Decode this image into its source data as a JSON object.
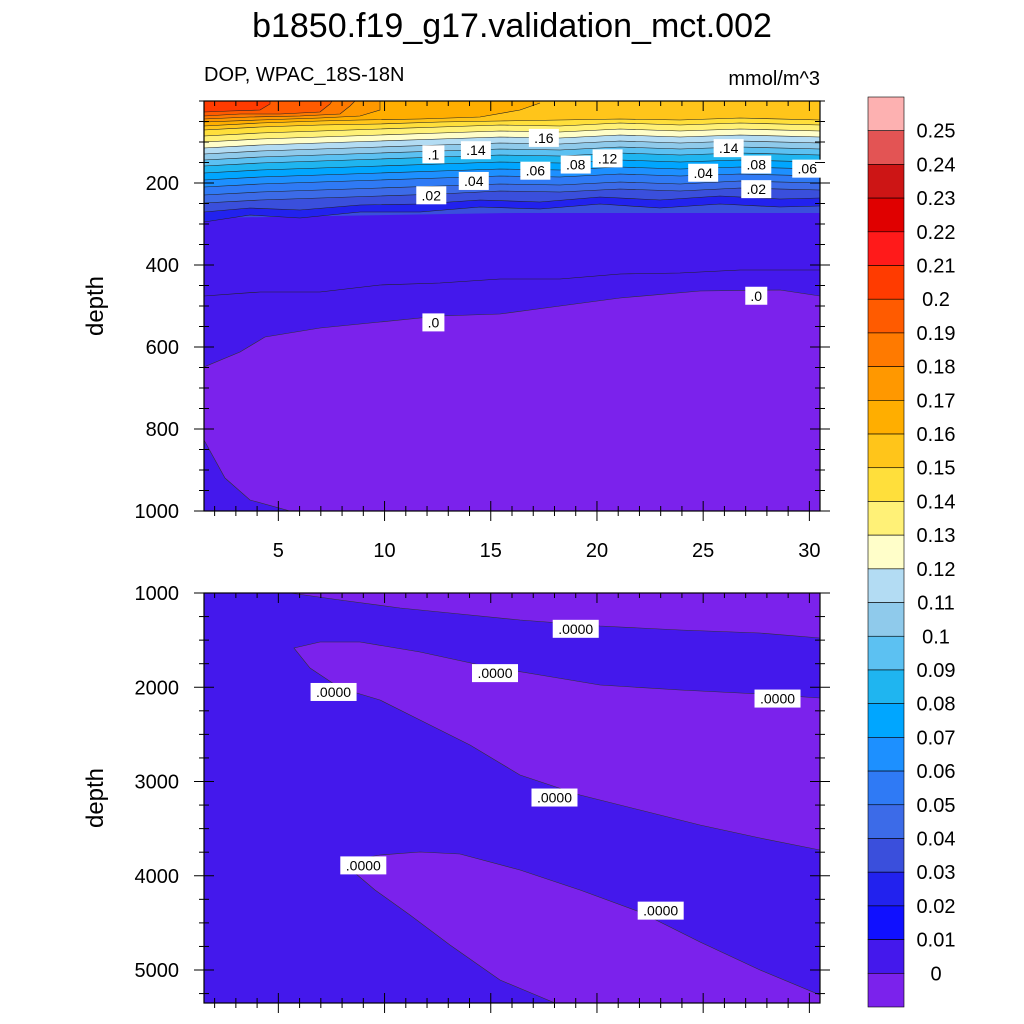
{
  "chart_data": [
    {
      "type": "contour",
      "title": "b1850.f19_g17.validation_mct.002",
      "subtitle": "DOP, WPAC_18S-18N",
      "units": "mmol/m^3",
      "ylabel": "depth",
      "xlabel": "",
      "xlim": [
        1.5,
        30.5
      ],
      "ylim": [
        0,
        1000
      ],
      "y_inverted": true,
      "xticks": [
        5,
        10,
        15,
        20,
        25,
        30
      ],
      "yticks": [
        200,
        400,
        600,
        800,
        1000
      ],
      "contour_labels": [
        {
          "text": ".1",
          "x": 12.3,
          "y": 130
        },
        {
          "text": ".14",
          "x": 14.3,
          "y": 120
        },
        {
          "text": ".16",
          "x": 17.5,
          "y": 90
        },
        {
          "text": ".08",
          "x": 19.0,
          "y": 155
        },
        {
          "text": ".12",
          "x": 20.5,
          "y": 140
        },
        {
          "text": ".14",
          "x": 26.2,
          "y": 115
        },
        {
          "text": ".08",
          "x": 27.5,
          "y": 155
        },
        {
          "text": ".06",
          "x": 29.9,
          "y": 165
        },
        {
          "text": ".06",
          "x": 17.1,
          "y": 170
        },
        {
          "text": ".04",
          "x": 14.2,
          "y": 195
        },
        {
          "text": ".04",
          "x": 25.0,
          "y": 175
        },
        {
          "text": ".02",
          "x": 12.2,
          "y": 230
        },
        {
          "text": ".02",
          "x": 27.5,
          "y": 215
        },
        {
          "text": ".0",
          "x": 12.3,
          "y": 540
        },
        {
          "text": ".0",
          "x": 27.5,
          "y": 475
        }
      ]
    },
    {
      "type": "contour",
      "ylabel": "depth",
      "xlim": [
        1.5,
        30.5
      ],
      "ylim": [
        1000,
        5350
      ],
      "y_inverted": true,
      "yticks": [
        1000,
        2000,
        3000,
        4000,
        5000
      ],
      "contour_labels": [
        {
          "text": ".0000",
          "x": 19.0,
          "y": 1380
        },
        {
          "text": ".0000",
          "x": 15.2,
          "y": 1850
        },
        {
          "text": ".0000",
          "x": 7.6,
          "y": 2050
        },
        {
          "text": ".0000",
          "x": 28.5,
          "y": 2120
        },
        {
          "text": ".0000",
          "x": 18.0,
          "y": 3170
        },
        {
          "text": ".0000",
          "x": 9.0,
          "y": 3890
        },
        {
          "text": ".0000",
          "x": 23.0,
          "y": 4370
        }
      ]
    }
  ],
  "colorbar": {
    "levels": [
      "0.25",
      "0.24",
      "0.23",
      "0.22",
      "0.21",
      "0.2",
      "0.19",
      "0.18",
      "0.17",
      "0.16",
      "0.15",
      "0.14",
      "0.13",
      "0.12",
      "0.11",
      "0.1",
      "0.09",
      "0.08",
      "0.07",
      "0.06",
      "0.05",
      "0.04",
      "0.03",
      "0.02",
      "0.01",
      "0"
    ],
    "colors": [
      "#fdb1b1",
      "#e35454",
      "#cd1515",
      "#e00000",
      "#ff1a1a",
      "#ff3b00",
      "#ff5b00",
      "#ff7a00",
      "#ff9800",
      "#ffae00",
      "#ffc51a",
      "#ffdf3b",
      "#fff177",
      "#fffec9",
      "#b3dcf3",
      "#8fcaeb",
      "#5cc1f2",
      "#1fb5f0",
      "#00a6ff",
      "#1d90ff",
      "#2f7af5",
      "#3c6be8",
      "#3a4fdc",
      "#2222ee",
      "#1010ff",
      "#4418ec",
      "#7b22ec"
    ]
  },
  "colors": {
    "zero_fill": "#7b22ec",
    "below_zero_fill": "#4418ec"
  }
}
